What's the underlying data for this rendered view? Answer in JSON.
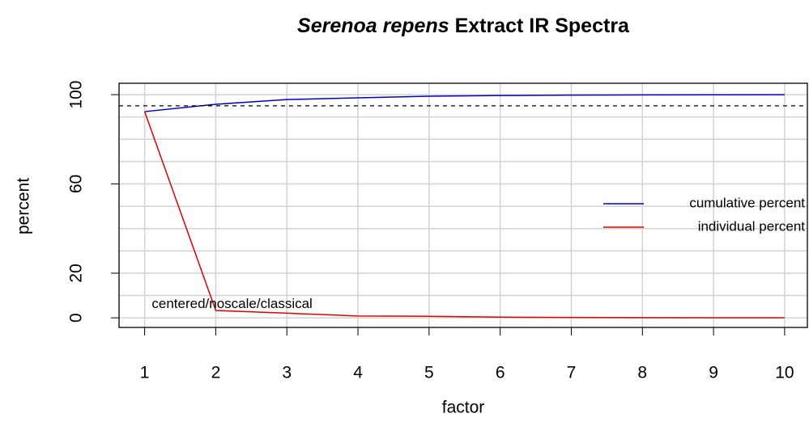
{
  "chart_data": {
    "type": "line",
    "title_italic": "Serenoa repens",
    "title": "Extract IR Spectra",
    "xlabel": "factor",
    "ylabel": "percent",
    "x": [
      1,
      2,
      3,
      4,
      5,
      6,
      7,
      8,
      9,
      10
    ],
    "series": [
      {
        "name": "cumulative percent",
        "color": "#0000cc",
        "values": [
          92.4,
          95.7,
          97.8,
          98.6,
          99.3,
          99.6,
          99.8,
          99.9,
          99.95,
          100
        ]
      },
      {
        "name": "individual percent",
        "color": "#e00000",
        "values": [
          92.4,
          3.3,
          2.1,
          0.8,
          0.7,
          0.3,
          0.2,
          0.1,
          0.05,
          0.05
        ]
      }
    ],
    "threshold": 95,
    "annotation": {
      "text": "centered/noscale/classical",
      "x": 1.1,
      "y": 6
    },
    "xlim": [
      0.64,
      10.32
    ],
    "ylim": [
      -4.3,
      105.1
    ],
    "xticks": [
      1,
      2,
      3,
      4,
      5,
      6,
      7,
      8,
      9,
      10
    ],
    "yticks": [
      0,
      20,
      60,
      100
    ],
    "ygrid": [
      0,
      10,
      20,
      30,
      40,
      50,
      60,
      70,
      80,
      90,
      100
    ],
    "grid": true,
    "legend": "right"
  }
}
